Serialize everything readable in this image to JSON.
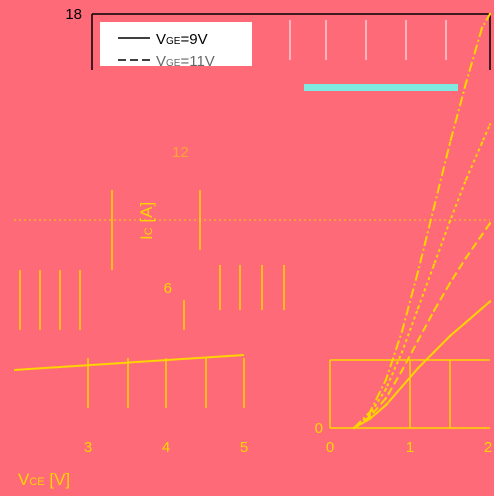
{
  "chart_data": {
    "type": "line",
    "title": "",
    "xlabel": "VCE [V]",
    "xlabel_parts": {
      "main": "V",
      "sub": "CE",
      "unit": " [V]"
    },
    "ylabel": "IC [A]",
    "ylabel_parts": {
      "main": "I",
      "sub": "C",
      "unit": " [A]"
    },
    "x_ticks": [
      "3",
      "4",
      "5",
      "0",
      "1",
      "2"
    ],
    "y_ticks": [
      "18",
      "12",
      "6",
      "0"
    ],
    "xlim": [
      0,
      2
    ],
    "ylim": [
      0,
      18
    ],
    "legend_position": "top-left",
    "colors": {
      "background": "#ff6a78",
      "axis": "#ffd400",
      "grid": "#ffd400",
      "legend_bg": "#ffffff",
      "legend_band": "#7fe8e0",
      "series": "#ffd400"
    },
    "legend": [
      {
        "prefix": "V",
        "sub": "GE",
        "suffix": "=9V"
      },
      {
        "prefix": "V",
        "sub": "GE",
        "suffix": "=11V"
      }
    ],
    "series": [
      {
        "name": "VGE=9V",
        "x": [
          0.3,
          0.5,
          0.7,
          0.9,
          1.1,
          1.3,
          1.5,
          1.7,
          1.9,
          2.0
        ],
        "y": [
          0,
          0.4,
          1.0,
          1.8,
          2.6,
          3.3,
          4.0,
          4.6,
          5.2,
          5.5
        ]
      },
      {
        "name": "VGE=11V",
        "x": [
          0.3,
          0.5,
          0.7,
          0.9,
          1.1,
          1.3,
          1.5,
          1.7,
          1.9,
          2.0
        ],
        "y": [
          0,
          0.5,
          1.3,
          2.5,
          3.8,
          5.1,
          6.3,
          7.4,
          8.4,
          8.9
        ]
      },
      {
        "x": [
          0.3,
          0.5,
          0.7,
          0.9,
          1.1,
          1.3,
          1.5,
          1.7,
          1.9,
          2.0
        ],
        "y": [
          0,
          0.6,
          1.7,
          3.3,
          5.2,
          7.1,
          9.0,
          10.8,
          12.4,
          13.2
        ]
      },
      {
        "x": [
          0.3,
          0.5,
          0.7,
          0.9,
          1.1,
          1.3,
          1.5,
          1.7,
          1.9,
          2.0
        ],
        "y": [
          0,
          0.7,
          2.1,
          4.2,
          6.8,
          9.6,
          12.4,
          15.0,
          17.4,
          18.0
        ]
      }
    ]
  }
}
